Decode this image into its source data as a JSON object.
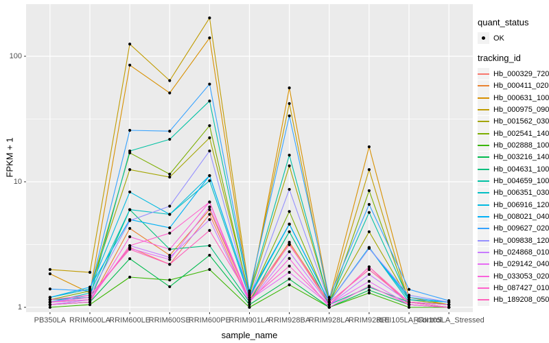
{
  "chart_data": {
    "type": "line",
    "title": "",
    "xlabel": "sample_name",
    "ylabel": "FPKM + 1",
    "y_scale": "log10",
    "y_major_ticks": [
      1,
      10,
      100
    ],
    "y_minor_ticks": [
      3.1623,
      31.623
    ],
    "ylim": [
      0.92,
      265
    ],
    "grid": "white major+minor on grey panel",
    "legend_position": "right",
    "categories": [
      "PB350LA",
      "RRIM600LA",
      "RRIM600LE",
      "RRIM600SE",
      "RRIM600PE",
      "RRIM901LA",
      "RRIM928BA",
      "RRIM928LA",
      "RRIM928LE",
      "RRII105LA_Control",
      "RRII105LA_Stressed"
    ],
    "series": [
      {
        "name": "Hb_000329_720",
        "color": "#F8766D",
        "values": [
          1.1,
          1.2,
          3.0,
          2.2,
          5.5,
          1.1,
          3.2,
          1.05,
          2.1,
          1.05,
          1.0
        ]
      },
      {
        "name": "Hb_000411_020",
        "color": "#EA8331",
        "values": [
          1.05,
          1.1,
          4.25,
          2.6,
          6.0,
          1.15,
          3.3,
          1.1,
          2.0,
          1.1,
          1.0
        ]
      },
      {
        "name": "Hb_000631_100",
        "color": "#D89000",
        "values": [
          1.85,
          1.3,
          85,
          51,
          140,
          1.2,
          56,
          1.15,
          19,
          1.2,
          1.05
        ]
      },
      {
        "name": "Hb_000975_090",
        "color": "#C09B00",
        "values": [
          2.0,
          1.9,
          125,
          64,
          202,
          1.3,
          42,
          1.1,
          12.5,
          1.1,
          1.0
        ]
      },
      {
        "name": "Hb_001562_030",
        "color": "#A3A500",
        "values": [
          1.2,
          1.4,
          12.5,
          10.9,
          22.4,
          1.25,
          13.4,
          1.1,
          4.0,
          1.15,
          1.05
        ]
      },
      {
        "name": "Hb_002541_140",
        "color": "#7CAE00",
        "values": [
          1.15,
          1.35,
          17.0,
          11.5,
          28,
          1.2,
          5.8,
          1.05,
          8.5,
          1.1,
          1.0
        ]
      },
      {
        "name": "Hb_002888_100",
        "color": "#39B600",
        "values": [
          1.0,
          1.05,
          1.74,
          1.65,
          2.0,
          1.0,
          1.51,
          1.0,
          1.3,
          1.0,
          1.0
        ]
      },
      {
        "name": "Hb_003216_140",
        "color": "#00BB4E",
        "values": [
          1.05,
          1.1,
          2.44,
          1.46,
          2.6,
          1.05,
          1.68,
          1.0,
          1.37,
          1.05,
          1.0
        ]
      },
      {
        "name": "Hb_004631_100",
        "color": "#00BF7D",
        "values": [
          1.1,
          1.15,
          6.0,
          2.9,
          3.1,
          1.1,
          4.0,
          1.05,
          1.45,
          1.1,
          1.05
        ]
      },
      {
        "name": "Hb_004659_100",
        "color": "#00C1A3",
        "values": [
          1.15,
          1.2,
          17.6,
          21.8,
          44,
          1.3,
          16.3,
          1.1,
          5.7,
          1.15,
          1.1
        ]
      },
      {
        "name": "Hb_006351_030",
        "color": "#00BFC4",
        "values": [
          1.1,
          1.3,
          6.0,
          5.5,
          10.2,
          1.2,
          4.6,
          1.1,
          3.0,
          1.1,
          1.05
        ]
      },
      {
        "name": "Hb_006916_120",
        "color": "#00BAE0",
        "values": [
          1.2,
          1.4,
          8.3,
          5.5,
          11.2,
          1.25,
          4.6,
          1.1,
          3.0,
          1.15,
          1.1
        ]
      },
      {
        "name": "Hb_008021_040",
        "color": "#00B0F6",
        "values": [
          1.2,
          1.45,
          5.0,
          4.3,
          11.2,
          1.25,
          4.6,
          1.1,
          2.95,
          1.2,
          1.1
        ]
      },
      {
        "name": "Hb_009627_020",
        "color": "#35A2FF",
        "values": [
          1.4,
          1.35,
          25.7,
          25.3,
          60,
          1.35,
          33.5,
          1.2,
          6.6,
          1.39,
          1.13
        ]
      },
      {
        "name": "Hb_009838_120",
        "color": "#9590FF",
        "values": [
          1.1,
          1.25,
          4.9,
          6.4,
          17.6,
          1.2,
          8.7,
          1.1,
          2.95,
          1.25,
          1.1
        ]
      },
      {
        "name": "Hb_024868_010",
        "color": "#C77CFF",
        "values": [
          1.05,
          1.15,
          3.1,
          2.5,
          5.0,
          1.1,
          2.77,
          1.05,
          1.83,
          1.1,
          1.0
        ]
      },
      {
        "name": "Hb_029142_040",
        "color": "#E76BF3",
        "values": [
          1.1,
          1.2,
          2.95,
          2.4,
          6.3,
          1.15,
          1.9,
          1.05,
          1.61,
          1.05,
          1.0
        ]
      },
      {
        "name": "Hb_033053_020",
        "color": "#FA62DB",
        "values": [
          1.05,
          1.1,
          3.65,
          2.9,
          6.9,
          1.1,
          2.45,
          1.0,
          1.48,
          1.05,
          1.0
        ]
      },
      {
        "name": "Hb_087427_010",
        "color": "#FF61CC",
        "values": [
          1.1,
          1.15,
          3.1,
          3.9,
          6.9,
          1.15,
          2.13,
          1.05,
          2.1,
          1.1,
          1.05
        ]
      },
      {
        "name": "Hb_189208_050",
        "color": "#FF62BC",
        "values": [
          1.15,
          1.25,
          2.9,
          2.2,
          4.1,
          1.2,
          3.15,
          1.1,
          2.0,
          1.1,
          1.0
        ]
      }
    ]
  },
  "axes": {
    "x_title": "sample_name",
    "y_title": "FPKM + 1",
    "y_tick_labels": [
      "100",
      "10",
      "1"
    ]
  },
  "legend": {
    "quant_status_title": "quant_status",
    "quant_status_items": [
      {
        "label": "OK",
        "marker": "black-point"
      }
    ],
    "tracking_id_title": "tracking_id"
  },
  "colors": {
    "panel_bg": "#EBEBEB",
    "grid": "#FFFFFF",
    "axis_text": "#4D4D4D",
    "tick_mark": "#333333",
    "point": "#000000",
    "legend_key_bg": "#F2F2F2"
  }
}
